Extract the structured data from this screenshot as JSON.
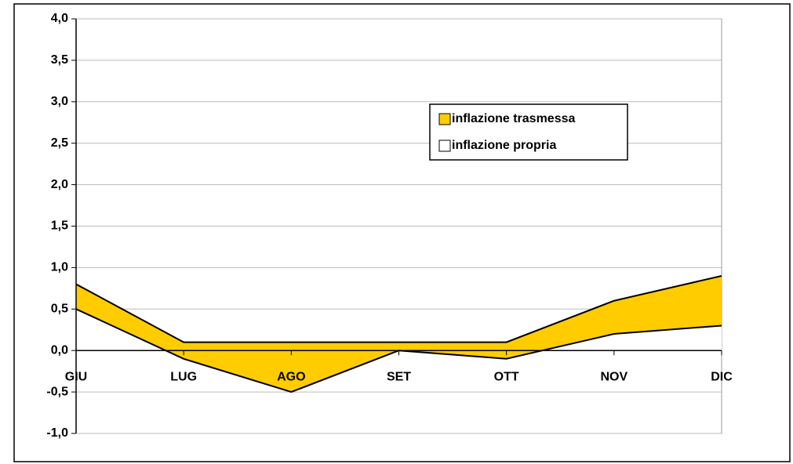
{
  "chart_data": {
    "type": "area",
    "stacked": true,
    "categories": [
      "GIU",
      "LUG",
      "AGO",
      "SET",
      "OTT",
      "NOV",
      "DIC"
    ],
    "series": [
      {
        "name": "inflazione propria",
        "color": "#ffffff",
        "values": [
          0.5,
          -0.1,
          -0.5,
          0.0,
          -0.1,
          0.2,
          0.3
        ]
      },
      {
        "name": "inflazione trasmessa",
        "color": "#ffcc00",
        "values": [
          0.3,
          0.2,
          0.6,
          0.1,
          0.2,
          0.4,
          0.6
        ]
      }
    ],
    "ylim": [
      -1,
      4
    ],
    "yticks": [
      {
        "value": -1,
        "label": "-1,0"
      },
      {
        "value": -0.5,
        "label": "-0,5"
      },
      {
        "value": 0,
        "label": "0,0"
      },
      {
        "value": 0.5,
        "label": "0,5"
      },
      {
        "value": 1,
        "label": "1,0"
      },
      {
        "value": 1.5,
        "label": "1,5"
      },
      {
        "value": 2,
        "label": "2,0"
      },
      {
        "value": 2.5,
        "label": "2,5"
      },
      {
        "value": 3,
        "label": "3,0"
      },
      {
        "value": 3.5,
        "label": "3,5"
      },
      {
        "value": 4,
        "label": "4,0"
      }
    ],
    "grid": true,
    "legend": "upper right"
  }
}
